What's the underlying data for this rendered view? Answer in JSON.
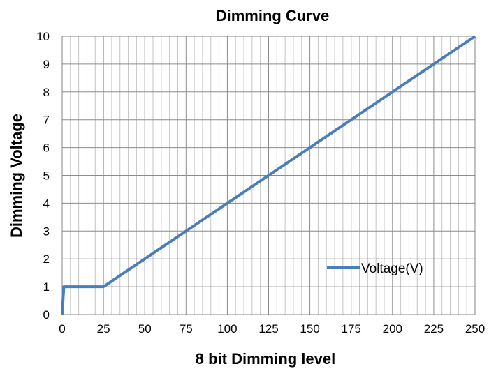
{
  "chart_data": {
    "type": "line",
    "title": "Dimming Curve",
    "xlabel": "8 bit Dimming level",
    "ylabel": "Dimming Voltage",
    "xlim": [
      0,
      250
    ],
    "ylim": [
      0,
      10
    ],
    "x_ticks": [
      0,
      25,
      50,
      75,
      100,
      125,
      150,
      175,
      200,
      225,
      250
    ],
    "y_ticks": [
      0,
      1,
      2,
      3,
      4,
      5,
      6,
      7,
      8,
      9,
      10
    ],
    "grid": true,
    "legend_position": "bottom-right",
    "series": [
      {
        "name": "Voltage(V)",
        "color": "#4a7ebb",
        "x": [
          0,
          1,
          25,
          250
        ],
        "y": [
          0,
          1,
          1,
          10
        ]
      }
    ]
  }
}
